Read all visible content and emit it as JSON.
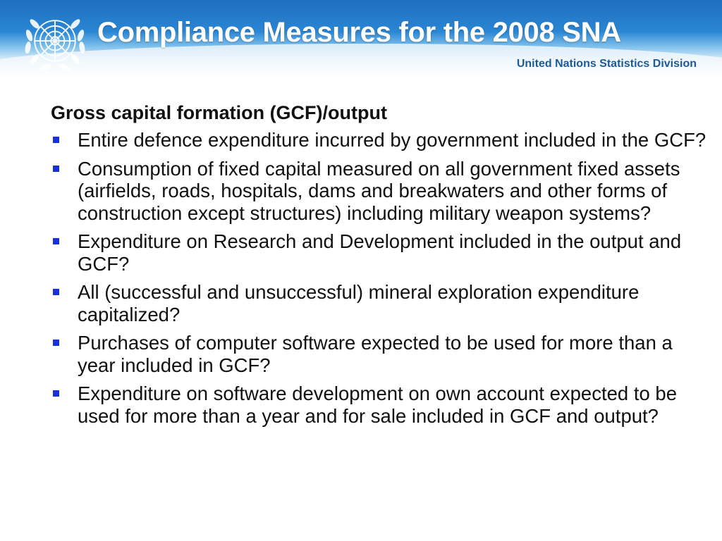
{
  "header": {
    "title": "Compliance Measures for the 2008 SNA",
    "organization": "United Nations Statistics Division",
    "logo_icon": "un-emblem-icon",
    "colors": {
      "banner_blue": "#2a86d3",
      "title_text": "#ffffff",
      "organization_text": "#1d5a9a"
    }
  },
  "main": {
    "heading": "Gross capital formation (GCF)/output",
    "bullet_color": "#1b2fd6",
    "bullets": [
      {
        "text": "Entire defence expenditure incurred by government included in the GCF?"
      },
      {
        "text": "Consumption of fixed capital measured on all government fixed assets (airfields, roads, hospitals, dams and breakwaters and other forms of construction except structures) including military weapon systems?"
      },
      {
        "text": "Expenditure on Research and Development included in the output and GCF?"
      },
      {
        "text": "All (successful and unsuccessful) mineral exploration expenditure capitalized?"
      },
      {
        "text": "Purchases of computer software expected to be used for more than a year included in GCF?"
      },
      {
        "text": "Expenditure on software development on own account expected to be used for more than a year and for sale included in GCF and output?"
      }
    ]
  }
}
